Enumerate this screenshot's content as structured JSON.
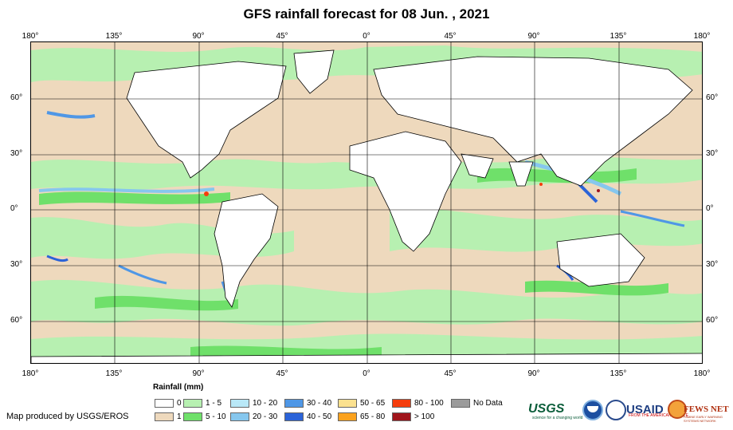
{
  "title": "GFS rainfall forecast for 08 Jun. , 2021",
  "axes": {
    "longitude_ticks": [
      "180°",
      "135°",
      "90°",
      "45°",
      "0°",
      "45°",
      "90°",
      "135°",
      "180°"
    ],
    "latitude_ticks": [
      "60°",
      "30°",
      "0°",
      "30°",
      "60°"
    ]
  },
  "legend": {
    "title": "Rainfall (mm)",
    "items": [
      {
        "label": "0",
        "color": "#ffffff"
      },
      {
        "label": "1",
        "color": "#eed9bd"
      },
      {
        "label": "1 - 5",
        "color": "#b7f0b1"
      },
      {
        "label": "5 - 10",
        "color": "#6fe06a"
      },
      {
        "label": "10 - 20",
        "color": "#b9e8f7"
      },
      {
        "label": "20 - 30",
        "color": "#86c7ee"
      },
      {
        "label": "30 - 40",
        "color": "#4f97e6"
      },
      {
        "label": "40 - 50",
        "color": "#2b63d8"
      },
      {
        "label": "50 - 65",
        "color": "#fbe18f"
      },
      {
        "label": "65 - 80",
        "color": "#fba21e"
      },
      {
        "label": "80 - 100",
        "color": "#f53d0c"
      },
      {
        "label": "> 100",
        "color": "#a0151b"
      },
      {
        "label": "No Data",
        "color": "#9b9b9b"
      }
    ]
  },
  "credit": "Map produced by USGS/EROS",
  "logos": {
    "usgs": "USGS",
    "usgs_tagline": "science for a changing world",
    "usaid": "USAID",
    "usaid_tagline": "FROM THE AMERICAN PEOPLE",
    "fews": "FEWS NET",
    "fews_tagline": "FAMINE EARLY WARNING SYSTEMS NETWORK"
  }
}
